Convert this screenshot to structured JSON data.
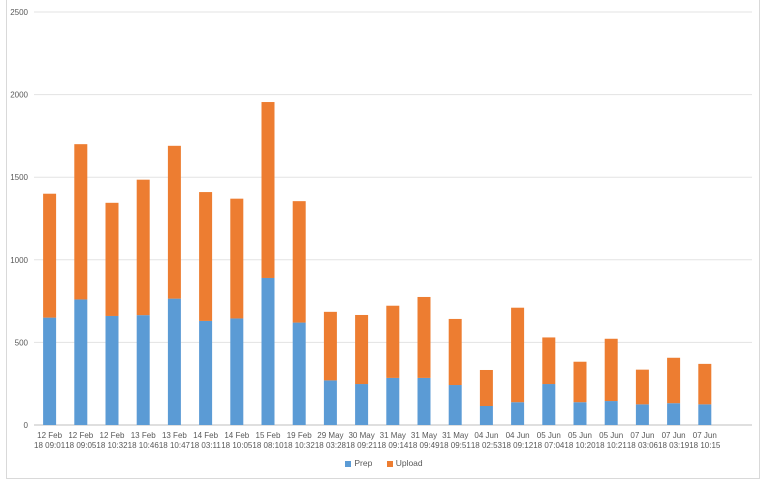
{
  "chart_data": {
    "type": "bar",
    "stacked": true,
    "title": "",
    "xlabel": "",
    "ylabel": "",
    "ylim": [
      0,
      2500
    ],
    "yticks": [
      0,
      500,
      1000,
      1500,
      2000,
      2500
    ],
    "grid": true,
    "legend_position": "bottom",
    "categories": [
      [
        "12 Feb",
        "18 09:01"
      ],
      [
        "12 Feb",
        "18 09:05"
      ],
      [
        "12 Feb",
        "18 10:32"
      ],
      [
        "13 Feb",
        "18 10:46"
      ],
      [
        "13 Feb",
        "18 10:47"
      ],
      [
        "14 Feb",
        "18 03:11"
      ],
      [
        "14 Feb",
        "18 10:05"
      ],
      [
        "15 Feb",
        "18 08:10"
      ],
      [
        "19 Feb",
        "18 10:32"
      ],
      [
        "29 May",
        "18 03:28"
      ],
      [
        "30 May",
        "18 09:21"
      ],
      [
        "31 May",
        "18 09:14"
      ],
      [
        "31 May",
        "18 09:49"
      ],
      [
        "31 May",
        "18 09:51"
      ],
      [
        "04 Jun",
        "18 02:53"
      ],
      [
        "04 Jun",
        "18 09:12"
      ],
      [
        "05 Jun",
        "18 07:04"
      ],
      [
        "05 Jun",
        "18 10:20"
      ],
      [
        "05 Jun",
        "18 10:21"
      ],
      [
        "07 Jun",
        "18 03:06"
      ],
      [
        "07 Jun",
        "18 03:19"
      ],
      [
        "07 Jun",
        "18 10:15"
      ]
    ],
    "series": [
      {
        "name": "Prep",
        "color": "#5b9bd5",
        "values": [
          650,
          760,
          660,
          665,
          765,
          630,
          645,
          890,
          620,
          270,
          248,
          285,
          285,
          242,
          115,
          138,
          248,
          138,
          145,
          125,
          132,
          125
        ]
      },
      {
        "name": "Upload",
        "color": "#ed7d31",
        "values": [
          750,
          940,
          685,
          820,
          925,
          780,
          725,
          1065,
          735,
          415,
          418,
          437,
          490,
          400,
          218,
          572,
          282,
          245,
          377,
          210,
          275,
          245
        ]
      }
    ]
  }
}
